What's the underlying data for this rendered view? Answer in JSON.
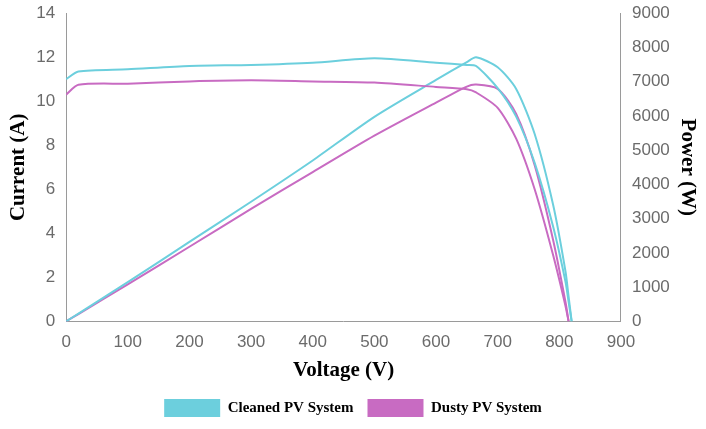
{
  "chart_data": {
    "type": "line",
    "x_label": "Voltage (V)",
    "y_label": "Current (A)",
    "y2_label": "Power (W)",
    "x": [
      0,
      20,
      100,
      200,
      300,
      400,
      500,
      600,
      650,
      665,
      700,
      730,
      760,
      790,
      810,
      815,
      820
    ],
    "series": [
      {
        "name": "Cleaned PV System",
        "color": "#6ccfdd",
        "axis": "y",
        "values": [
          11.0,
          11.35,
          11.45,
          11.6,
          11.65,
          11.75,
          11.95,
          11.75,
          11.65,
          11.6,
          10.6,
          9.3,
          7.2,
          4.3,
          1.8,
          0.9,
          0
        ]
      },
      {
        "name": "Dusty PV System",
        "color": "#c86bc2",
        "axis": "y",
        "values": [
          10.3,
          10.75,
          10.8,
          10.9,
          10.95,
          10.9,
          10.85,
          10.65,
          10.55,
          10.4,
          9.7,
          8.3,
          6.0,
          3.0,
          0.7,
          0,
          null
        ]
      },
      {
        "name": "Cleaned PV System",
        "color": "#6ccfdd",
        "axis": "y2",
        "values": [
          0,
          227,
          1145,
          2320,
          3495,
          4700,
          5975,
          7050,
          7573,
          7714,
          7420,
          6789,
          5472,
          3397,
          1458,
          734,
          0
        ]
      },
      {
        "name": "Dusty PV System",
        "color": "#c86bc2",
        "axis": "y2",
        "values": [
          0,
          215,
          1080,
          2180,
          3285,
          4360,
          5425,
          6390,
          6858,
          6916,
          6790,
          6059,
          4560,
          2370,
          567,
          0,
          null
        ]
      }
    ],
    "xlim": [
      0,
      900
    ],
    "xticks": [
      0,
      100,
      200,
      300,
      400,
      500,
      600,
      700,
      800,
      900
    ],
    "ylim": [
      0,
      14
    ],
    "yticks": [
      0,
      2,
      4,
      6,
      8,
      10,
      12,
      14
    ],
    "y2lim": [
      0,
      9000
    ],
    "y2ticks": [
      0,
      1000,
      2000,
      3000,
      4000,
      5000,
      6000,
      7000,
      8000,
      9000
    ],
    "grid": false,
    "legend": "bottom"
  }
}
